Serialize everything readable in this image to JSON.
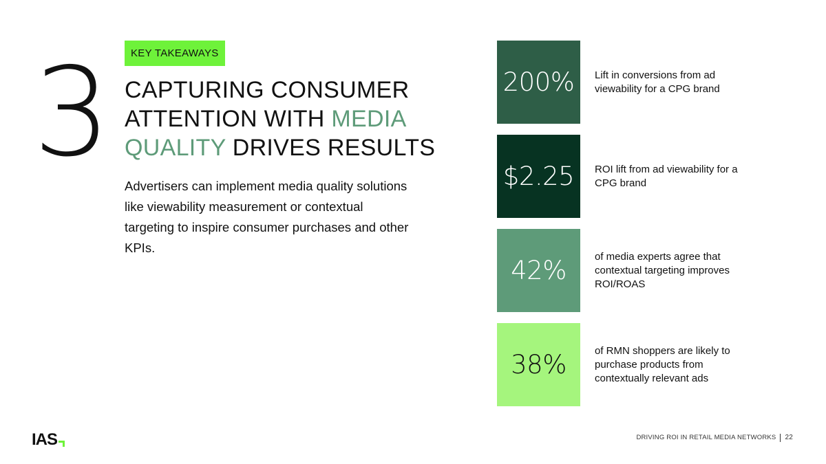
{
  "section_number": "3",
  "badge": "KEY TAKEAWAYS",
  "headline": {
    "part1": "CAPTURING CONSUMER ATTENTION WITH ",
    "accent": "MEDIA QUALITY",
    "part2": " DRIVES RESULTS"
  },
  "body": "Advertisers can implement media quality solutions like viewability measurement or contextual targeting to inspire consumer purchases and other KPIs.",
  "stats": [
    {
      "value": "200%",
      "text": "Lift in conversions from ad viewability for a CPG brand",
      "bg": "#2e5e47",
      "fg": "#ffffff"
    },
    {
      "value": "$2.25",
      "text": "ROI lift from ad viewability for a CPG brand",
      "bg": "#073322",
      "fg": "#ffffff"
    },
    {
      "value": "42%",
      "text": "of media experts agree that contextual targeting improves ROI/ROAS",
      "bg": "#5e9b79",
      "fg": "#ffffff"
    },
    {
      "value": "38%",
      "text": "of RMN shoppers are likely to purchase products from contextually relevant ads",
      "bg": "#a5f57d",
      "fg": "#111111"
    }
  ],
  "logo": {
    "text": "IAS",
    "mark_icon": "corner-arrow-icon",
    "mark_color": "#6ef23a"
  },
  "footer": {
    "title": "DRIVING ROI IN RETAIL MEDIA NETWORKS",
    "page": "22"
  },
  "colors": {
    "accent_green": "#5e9b79",
    "highlight": "#6ef23a"
  }
}
